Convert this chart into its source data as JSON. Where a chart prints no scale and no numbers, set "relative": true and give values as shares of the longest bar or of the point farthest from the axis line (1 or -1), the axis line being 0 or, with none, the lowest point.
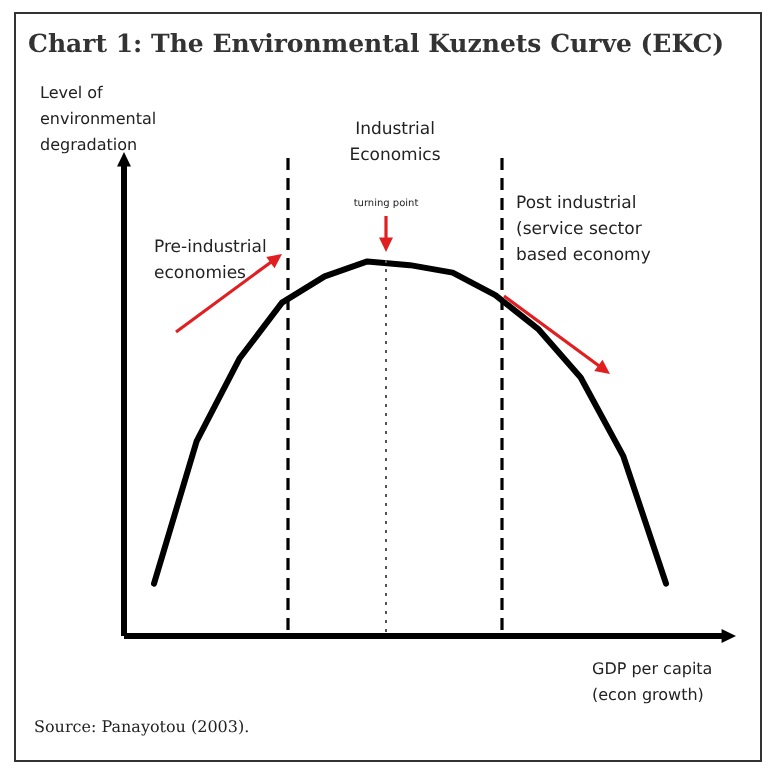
{
  "chart_data": {
    "type": "line",
    "title": "Chart 1: The Environmental Kuznets Curve (EKC)",
    "xlabel": "GDP per capita (econ growth)",
    "relative": true,
    "categories": [
      null,
      null,
      null,
      null,
      null,
      null,
      null,
      null,
      null,
      null,
      null,
      null,
      null
    ],
    "series": [
      {
        "color": "#000000",
        "values": [
          0.14,
          0.52,
          0.74,
          0.89,
          0.96,
          1,
          0.99,
          0.97,
          0.91,
          0.82,
          0.69,
          0.48,
          0.14
        ]
      }
    ],
    "annotations": [
      "Industrial Economics",
      "turning point",
      "Pre-industrial economies",
      "Post industrial (service sector based economy",
      "Source: Panayotou (2003).",
      "Level of environmental degradation"
    ],
    "marker": "none",
    "line_style": "solid",
    "grid": false,
    "legend": false
  }
}
